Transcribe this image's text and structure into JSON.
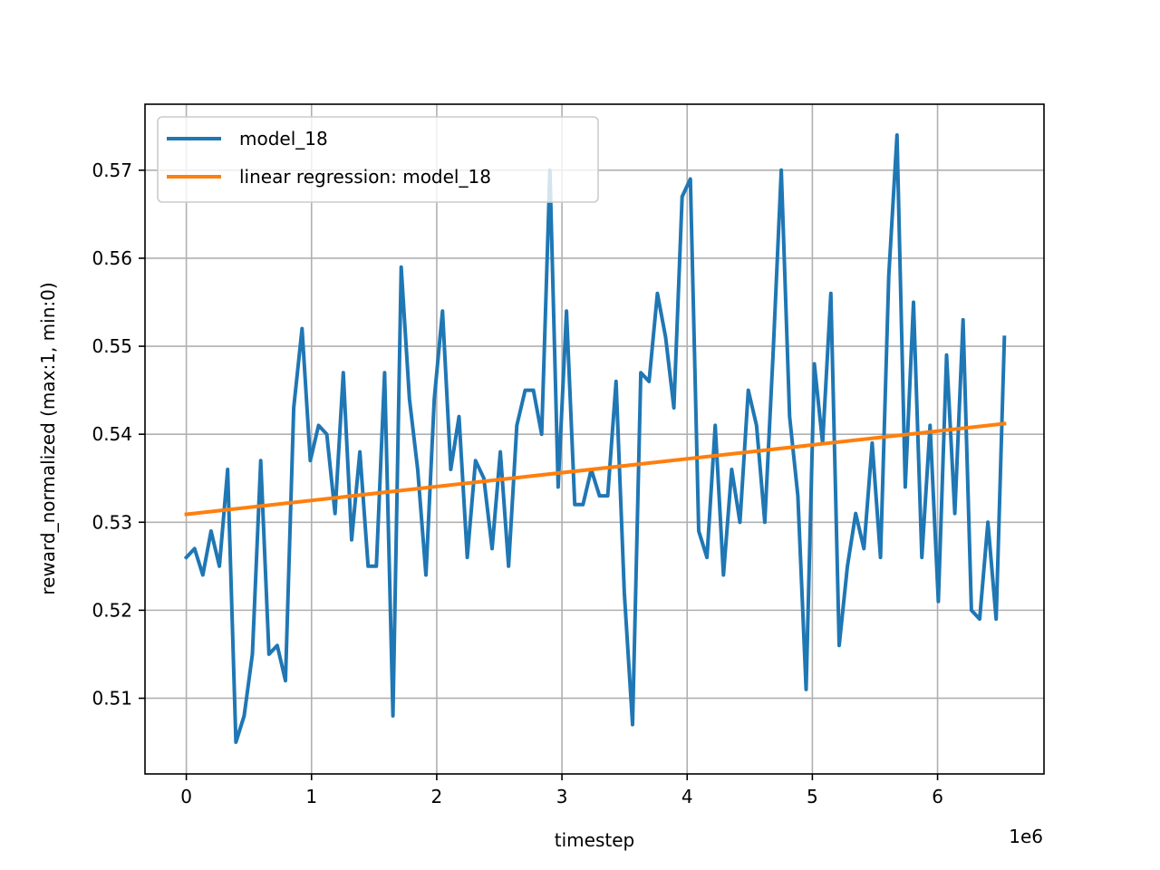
{
  "chart_data": {
    "type": "line",
    "xlabel": "timestep",
    "ylabel": "reward_normalized (max:1, min:0)",
    "x_offset_label": "1e6",
    "xlim": [
      -0.33,
      6.85
    ],
    "ylim": [
      0.5014,
      0.5775
    ],
    "x_ticks": [
      0,
      1,
      2,
      3,
      4,
      5,
      6
    ],
    "x_tick_labels": [
      "0",
      "1",
      "2",
      "3",
      "4",
      "5",
      "6"
    ],
    "y_ticks": [
      0.51,
      0.52,
      0.53,
      0.54,
      0.55,
      0.56,
      0.57
    ],
    "y_tick_labels": [
      "0.51",
      "0.52",
      "0.53",
      "0.54",
      "0.55",
      "0.56",
      "0.57"
    ],
    "grid": true,
    "legend_position": "top-left",
    "series": [
      {
        "name": "model_18",
        "color": "#1f77b4",
        "x": [
          0,
          0.066,
          0.132,
          0.198,
          0.264,
          0.33,
          0.396,
          0.462,
          0.528,
          0.594,
          0.66,
          0.726,
          0.792,
          0.858,
          0.924,
          0.99,
          1.056,
          1.122,
          1.188,
          1.254,
          1.32,
          1.386,
          1.452,
          1.518,
          1.584,
          1.65,
          1.716,
          1.782,
          1.848,
          1.914,
          1.98,
          2.046,
          2.112,
          2.178,
          2.244,
          2.31,
          2.376,
          2.442,
          2.508,
          2.574,
          2.64,
          2.706,
          2.772,
          2.838,
          2.904,
          2.97,
          3.036,
          3.102,
          3.168,
          3.234,
          3.3,
          3.366,
          3.432,
          3.498,
          3.564,
          3.63,
          3.696,
          3.762,
          3.828,
          3.894,
          3.96,
          4.026,
          4.092,
          4.158,
          4.224,
          4.29,
          4.356,
          4.422,
          4.488,
          4.554,
          4.62,
          4.686,
          4.752,
          4.818,
          4.884,
          4.95,
          5.016,
          5.082,
          5.148,
          5.214,
          5.28,
          5.346,
          5.412,
          5.478,
          5.544,
          5.61,
          5.676,
          5.742,
          5.808,
          5.874,
          5.94,
          6.006,
          6.072,
          6.138,
          6.204,
          6.27,
          6.336,
          6.402,
          6.468,
          6.534
        ],
        "y": [
          0.526,
          0.527,
          0.524,
          0.529,
          0.525,
          0.536,
          0.505,
          0.508,
          0.515,
          0.537,
          0.515,
          0.516,
          0.512,
          0.543,
          0.552,
          0.537,
          0.541,
          0.54,
          0.531,
          0.547,
          0.528,
          0.538,
          0.525,
          0.525,
          0.547,
          0.508,
          0.559,
          0.544,
          0.536,
          0.524,
          0.544,
          0.554,
          0.536,
          0.542,
          0.526,
          0.537,
          0.535,
          0.527,
          0.538,
          0.525,
          0.541,
          0.545,
          0.545,
          0.54,
          0.57,
          0.534,
          0.554,
          0.532,
          0.532,
          0.536,
          0.533,
          0.533,
          0.546,
          0.522,
          0.507,
          0.547,
          0.546,
          0.556,
          0.551,
          0.543,
          0.567,
          0.569,
          0.529,
          0.526,
          0.541,
          0.524,
          0.536,
          0.53,
          0.545,
          0.541,
          0.53,
          0.549,
          0.57,
          0.542,
          0.533,
          0.511,
          0.548,
          0.539,
          0.556,
          0.516,
          0.525,
          0.531,
          0.527,
          0.539,
          0.526,
          0.558,
          0.574,
          0.534,
          0.555,
          0.526,
          0.541,
          0.521,
          0.549,
          0.531,
          0.553,
          0.52,
          0.519,
          0.53,
          0.519,
          0.551
        ]
      },
      {
        "name": "linear regression: model_18",
        "color": "#ff7f0e",
        "x": [
          0,
          6.534
        ],
        "y": [
          0.5309,
          0.5412
        ]
      }
    ]
  }
}
